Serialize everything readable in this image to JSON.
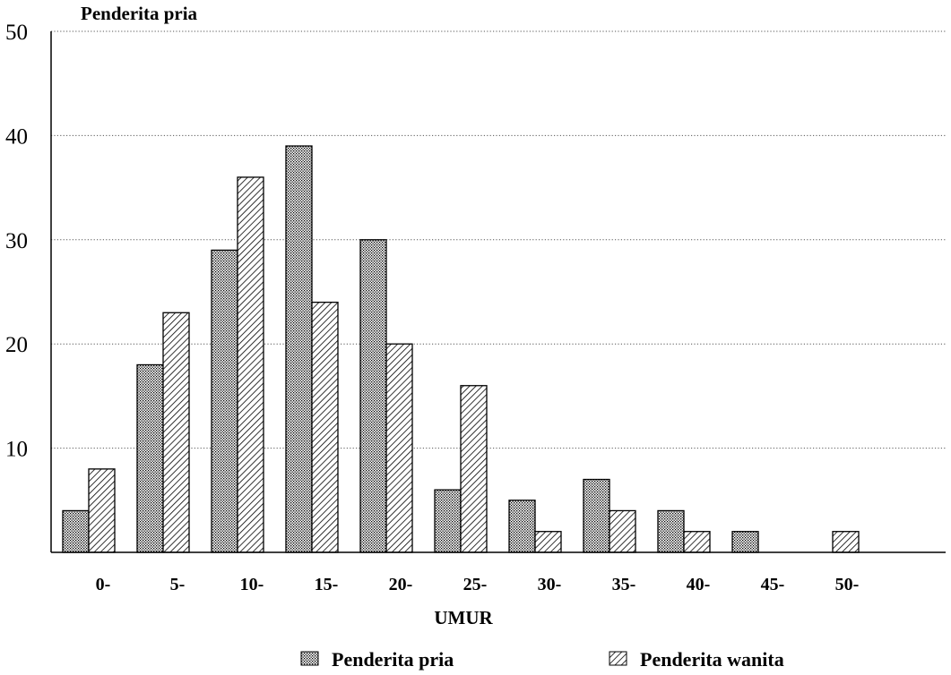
{
  "chart_data": {
    "type": "bar",
    "title": "Penderita pria",
    "xlabel": "UMUR",
    "ylabel": "",
    "ylim": [
      0,
      50
    ],
    "yticks": [
      10,
      20,
      30,
      40,
      50
    ],
    "grid": "horizontal dotted",
    "legend_position": "bottom",
    "categories": [
      "0-",
      "5-",
      "10-",
      "15-",
      "20-",
      "25-",
      "30-",
      "35-",
      "40-",
      "45-",
      "50-"
    ],
    "series": [
      {
        "name": "Penderita pria",
        "pattern": "dotted",
        "values": [
          4,
          18,
          29,
          39,
          30,
          6,
          5,
          7,
          4,
          2,
          0
        ]
      },
      {
        "name": "Penderita wanita",
        "pattern": "hatched",
        "values": [
          8,
          23,
          36,
          24,
          20,
          16,
          2,
          4,
          2,
          0,
          2
        ]
      }
    ]
  }
}
